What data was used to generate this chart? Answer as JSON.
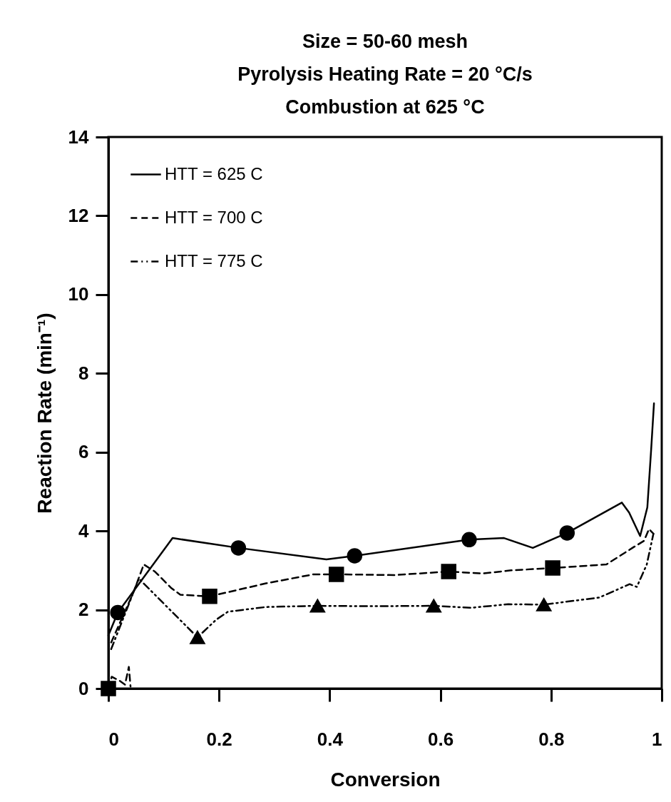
{
  "chart_data": {
    "type": "line",
    "title": [
      "Size = 50-60 mesh",
      "Pyrolysis Heating Rate = 20 °C/s",
      "Combustion at 625 °C"
    ],
    "xlabel": "Conversion",
    "ylabel": "Reaction Rate (min⁻¹)",
    "xlim": [
      0,
      1
    ],
    "xticks": [
      0,
      0.2,
      0.4,
      0.6,
      0.8,
      1
    ],
    "ylim": [
      0,
      14
    ],
    "yticks": [
      0,
      2,
      4,
      6,
      8,
      10,
      12,
      14
    ],
    "grid": false,
    "legend": "top left",
    "series": [
      {
        "name": "HTT = 625 C",
        "color": "#000000",
        "line_style": "solid",
        "x": [
          0,
          0.017,
          0.116,
          0.235,
          0.394,
          0.445,
          0.652,
          0.715,
          0.767,
          0.829,
          0.928,
          0.941,
          0.961,
          0.974,
          0.981,
          0.986
        ],
        "values": [
          1.35,
          1.93,
          3.82,
          3.57,
          3.28,
          3.37,
          3.78,
          3.82,
          3.57,
          3.95,
          4.72,
          4.47,
          3.87,
          4.6,
          6.09,
          7.24
        ]
      },
      {
        "name": "HTT = 700 C",
        "color": "#000000",
        "line_style": "dashed",
        "x": [
          0,
          0.006,
          0.02,
          0.03,
          0.037,
          0.04,
          null,
          0.005,
          0.045,
          0.064,
          0.084,
          0.113,
          0.13,
          0.183,
          0.285,
          0.371,
          0.412,
          0.517,
          0.615,
          0.677,
          0.728,
          0.803,
          0.9,
          0.947,
          0.968,
          0.977,
          0.985
        ],
        "values": [
          0,
          0.3,
          0.2,
          0.1,
          0.55,
          0.05,
          null,
          1.17,
          2.43,
          3.15,
          2.97,
          2.56,
          2.38,
          2.34,
          2.67,
          2.9,
          2.9,
          2.88,
          2.97,
          2.92,
          3.0,
          3.06,
          3.15,
          3.57,
          3.75,
          4.05,
          3.93
        ]
      },
      {
        "name": "HTT = 775 C",
        "color": "#000000",
        "line_style": "dotted",
        "x": [
          0.005,
          0.055,
          0.161,
          0.195,
          0.216,
          0.285,
          0.378,
          0.474,
          0.588,
          0.655,
          0.723,
          0.787,
          0.887,
          0.942,
          0.955,
          0.973,
          0.985
        ],
        "values": [
          1.0,
          2.79,
          1.3,
          1.75,
          1.95,
          2.07,
          2.1,
          2.09,
          2.1,
          2.05,
          2.14,
          2.13,
          2.31,
          2.65,
          2.58,
          3.15,
          3.93
        ]
      },
      {
        "type": "scatter",
        "color": "#000000",
        "marker": "circle",
        "x": [
          0.017,
          0.235,
          0.445,
          0.652,
          0.829
        ],
        "values": [
          1.93,
          3.57,
          3.37,
          3.78,
          3.95
        ]
      },
      {
        "type": "scatter",
        "color": "#000000",
        "marker": "square",
        "x": [
          0,
          0.183,
          0.412,
          0.615,
          0.803
        ],
        "values": [
          0,
          2.34,
          2.9,
          2.97,
          3.06
        ]
      },
      {
        "type": "scatter",
        "color": "#000000",
        "marker": "triangle",
        "x": [
          0.161,
          0.378,
          0.588,
          0.787
        ],
        "values": [
          1.3,
          2.1,
          2.1,
          2.13
        ]
      }
    ]
  }
}
